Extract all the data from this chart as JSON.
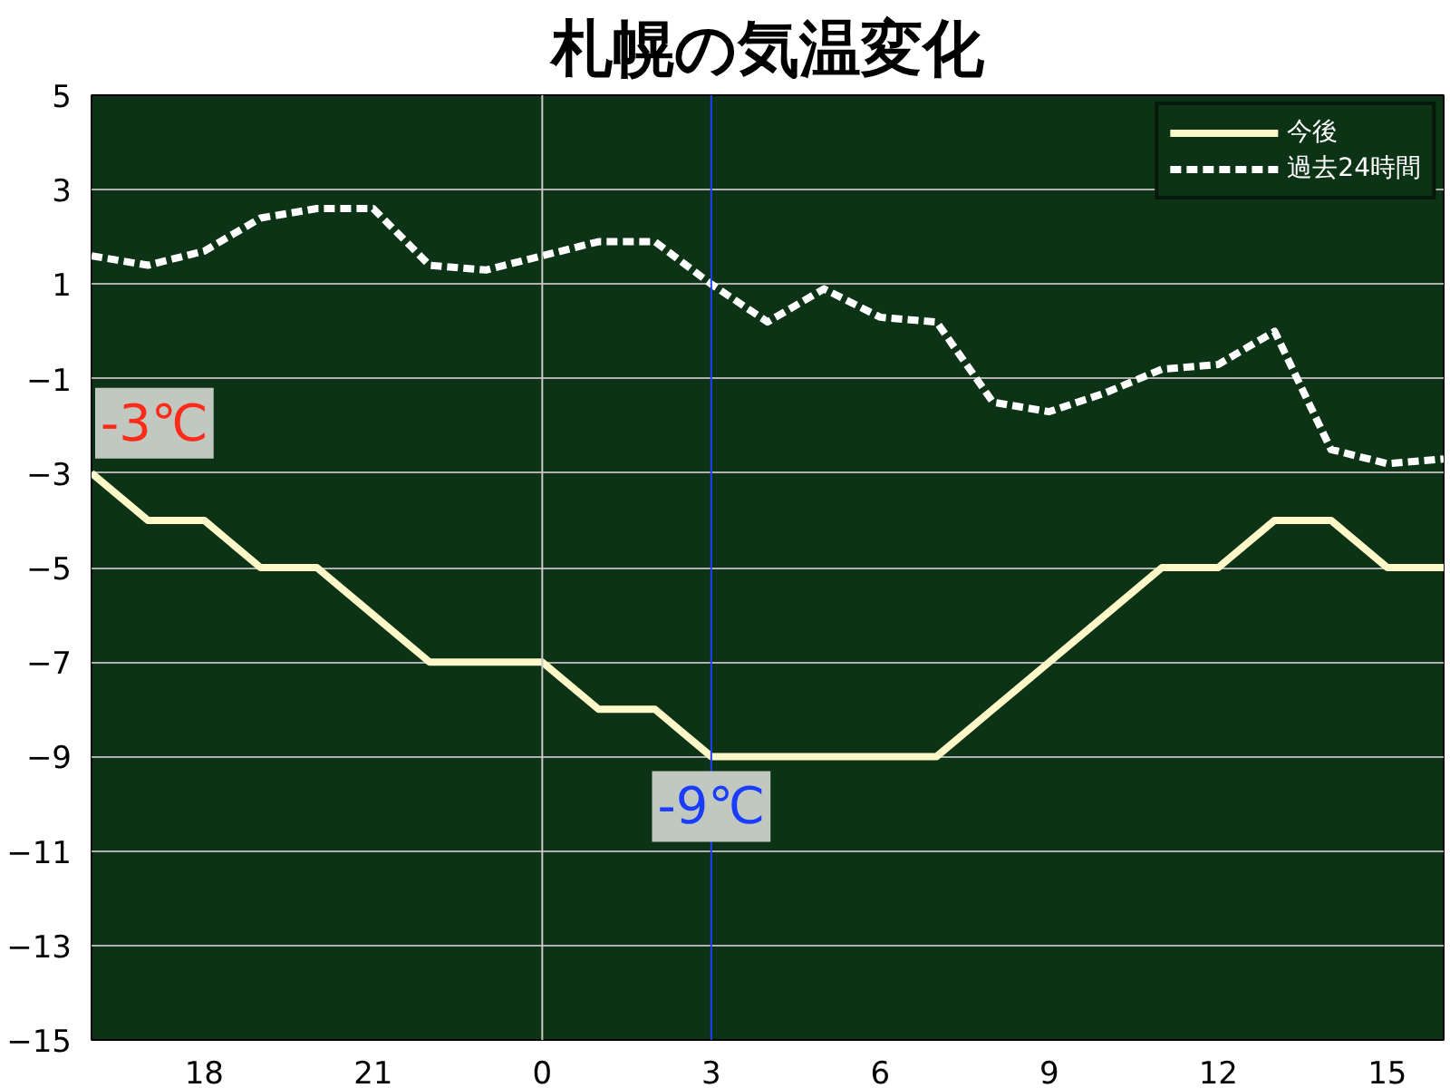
{
  "chart_data": {
    "type": "line",
    "title": "札幌の気温変化",
    "categories": [
      null,
      null,
      "18",
      null,
      null,
      "21",
      null,
      null,
      "0",
      null,
      null,
      "3",
      null,
      null,
      "6",
      null,
      null,
      "9",
      null,
      null,
      "12",
      null,
      null,
      "15",
      null
    ],
    "series": [
      {
        "name": "今後",
        "color": "#fff8c8",
        "line_style": "solid",
        "values": [
          -3,
          -4,
          -4,
          -5,
          -5,
          -6,
          -7,
          -7,
          -7,
          -8,
          -8,
          -9,
          -9,
          -9,
          -9,
          -9,
          -8,
          -7,
          -6,
          -5,
          -5,
          -4,
          -4,
          -5,
          -5
        ]
      },
      {
        "name": "過去24時間",
        "color": "#ffffff",
        "line_style": "dashed",
        "values": [
          1.6,
          1.4,
          1.7,
          2.4,
          2.6,
          2.6,
          1.4,
          1.3,
          1.6,
          1.9,
          1.9,
          1.0,
          0.2,
          0.9,
          0.3,
          0.2,
          -1.5,
          -1.7,
          -1.3,
          -0.8,
          -0.7,
          0.0,
          -2.5,
          -2.8,
          -2.7
        ]
      }
    ],
    "ylim": [
      -15,
      5
    ],
    "yticks": [
      -15,
      -13,
      -11,
      -9,
      -7,
      -5,
      -3,
      -1,
      1,
      3,
      5
    ],
    "ref_lines": [
      {
        "axis": "x",
        "value": "0",
        "color": "#c8c8c8"
      },
      {
        "axis": "x",
        "value": "3",
        "color": "#2040ff"
      }
    ],
    "annotations": [
      "-3℃",
      {
        "text": "-9℃",
        "x": "3",
        "y": -9
      }
    ],
    "grid": "y",
    "legend": "top right",
    "marker": "none"
  }
}
